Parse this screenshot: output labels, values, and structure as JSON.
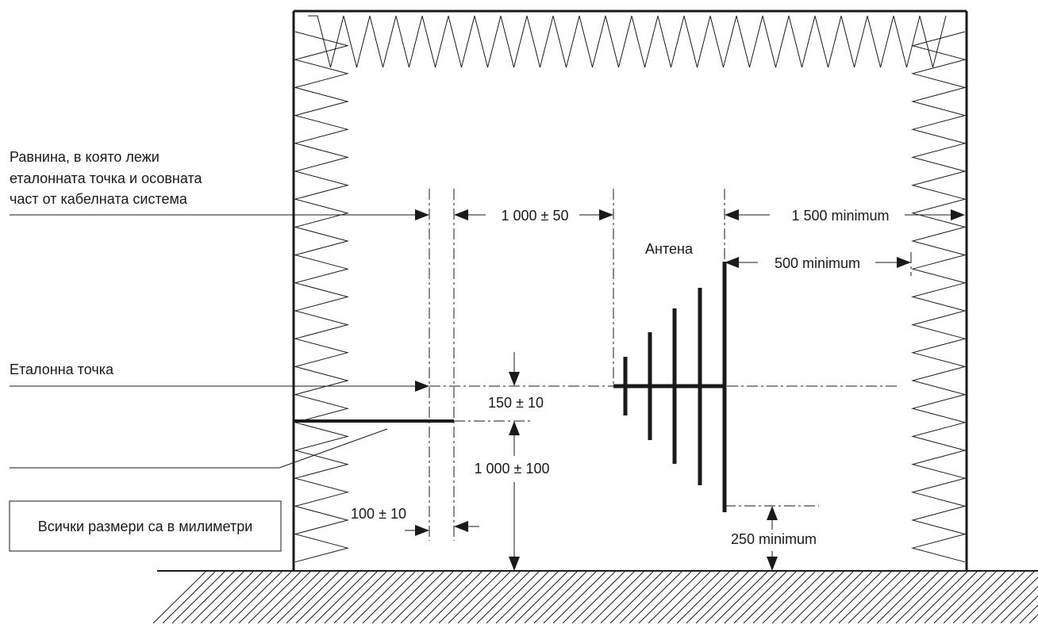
{
  "labels": {
    "plane_line1": "Равнина, в която лежи",
    "plane_line2": "еталонната точка и осовната",
    "plane_line3": "част от кабелната система",
    "reference_point": "Еталонна точка",
    "antenna": "Антена",
    "note": "Всички размери са в милиметри"
  },
  "dimensions": {
    "d_1000_50": "1 000 ± 50",
    "d_1500_min": "1 500 minimum",
    "d_500_min": "500 minimum",
    "d_150_10": "150 ± 10",
    "d_1000_100": "1 000 ± 100",
    "d_100_10": "100 ± 10",
    "d_250_min": "250 minimum"
  },
  "colors": {
    "line": "#1a1a1a",
    "background": "#ffffff"
  }
}
